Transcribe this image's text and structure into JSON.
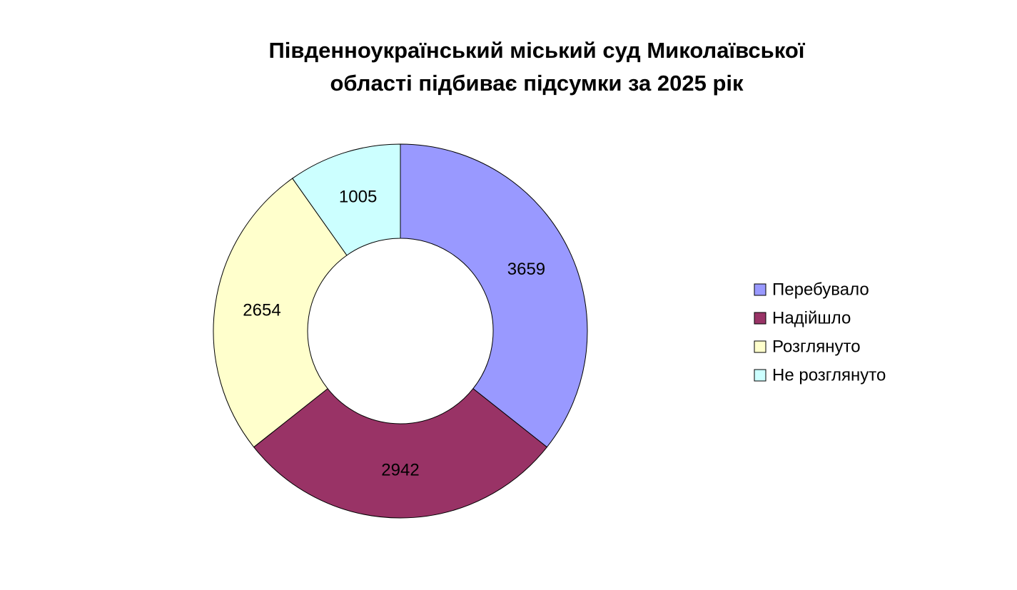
{
  "chart_data": {
    "type": "donut",
    "title": "Південноукраїнський міський суд Миколаївської області підбиває підсумки за 2025 рік",
    "categories": [
      "Перебувало",
      "Надійшло",
      "Розглянуто",
      "Не розглянуто"
    ],
    "values": [
      3659,
      2942,
      2654,
      1005
    ],
    "colors": [
      "#9999ff",
      "#993366",
      "#ffffcc",
      "#ccffff"
    ],
    "legend": "right"
  }
}
